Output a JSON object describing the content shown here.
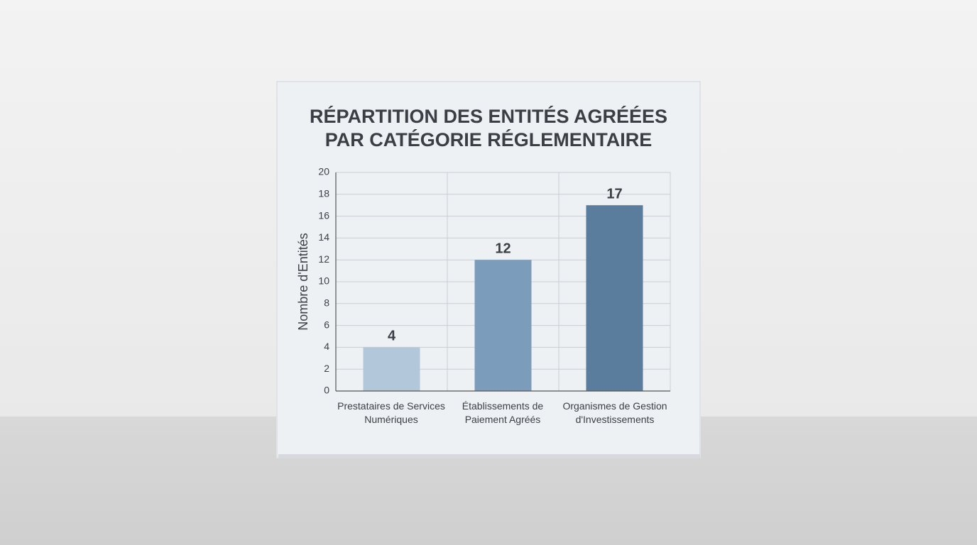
{
  "chart_data": {
    "type": "bar",
    "title": "RÉPARTITION DES ENTITÉS AGRÉÉES PAR CATÉGORIE RÉGLEMENTAIRE",
    "y_label": "Nombre d'Entités",
    "categories": [
      "Prestataires de Services Numériques",
      "Établissements de Paiement Agréés",
      "Organismes de Gestion d'Investissements"
    ],
    "values": [
      4,
      12,
      17
    ],
    "colors": [
      "#b3c7da",
      "#7c9cbb",
      "#5a7d9e"
    ],
    "ylim": [
      0,
      20
    ],
    "yticks": [
      0,
      2,
      4,
      6,
      8,
      10,
      12,
      14,
      16,
      18,
      20
    ],
    "grid": true
  }
}
